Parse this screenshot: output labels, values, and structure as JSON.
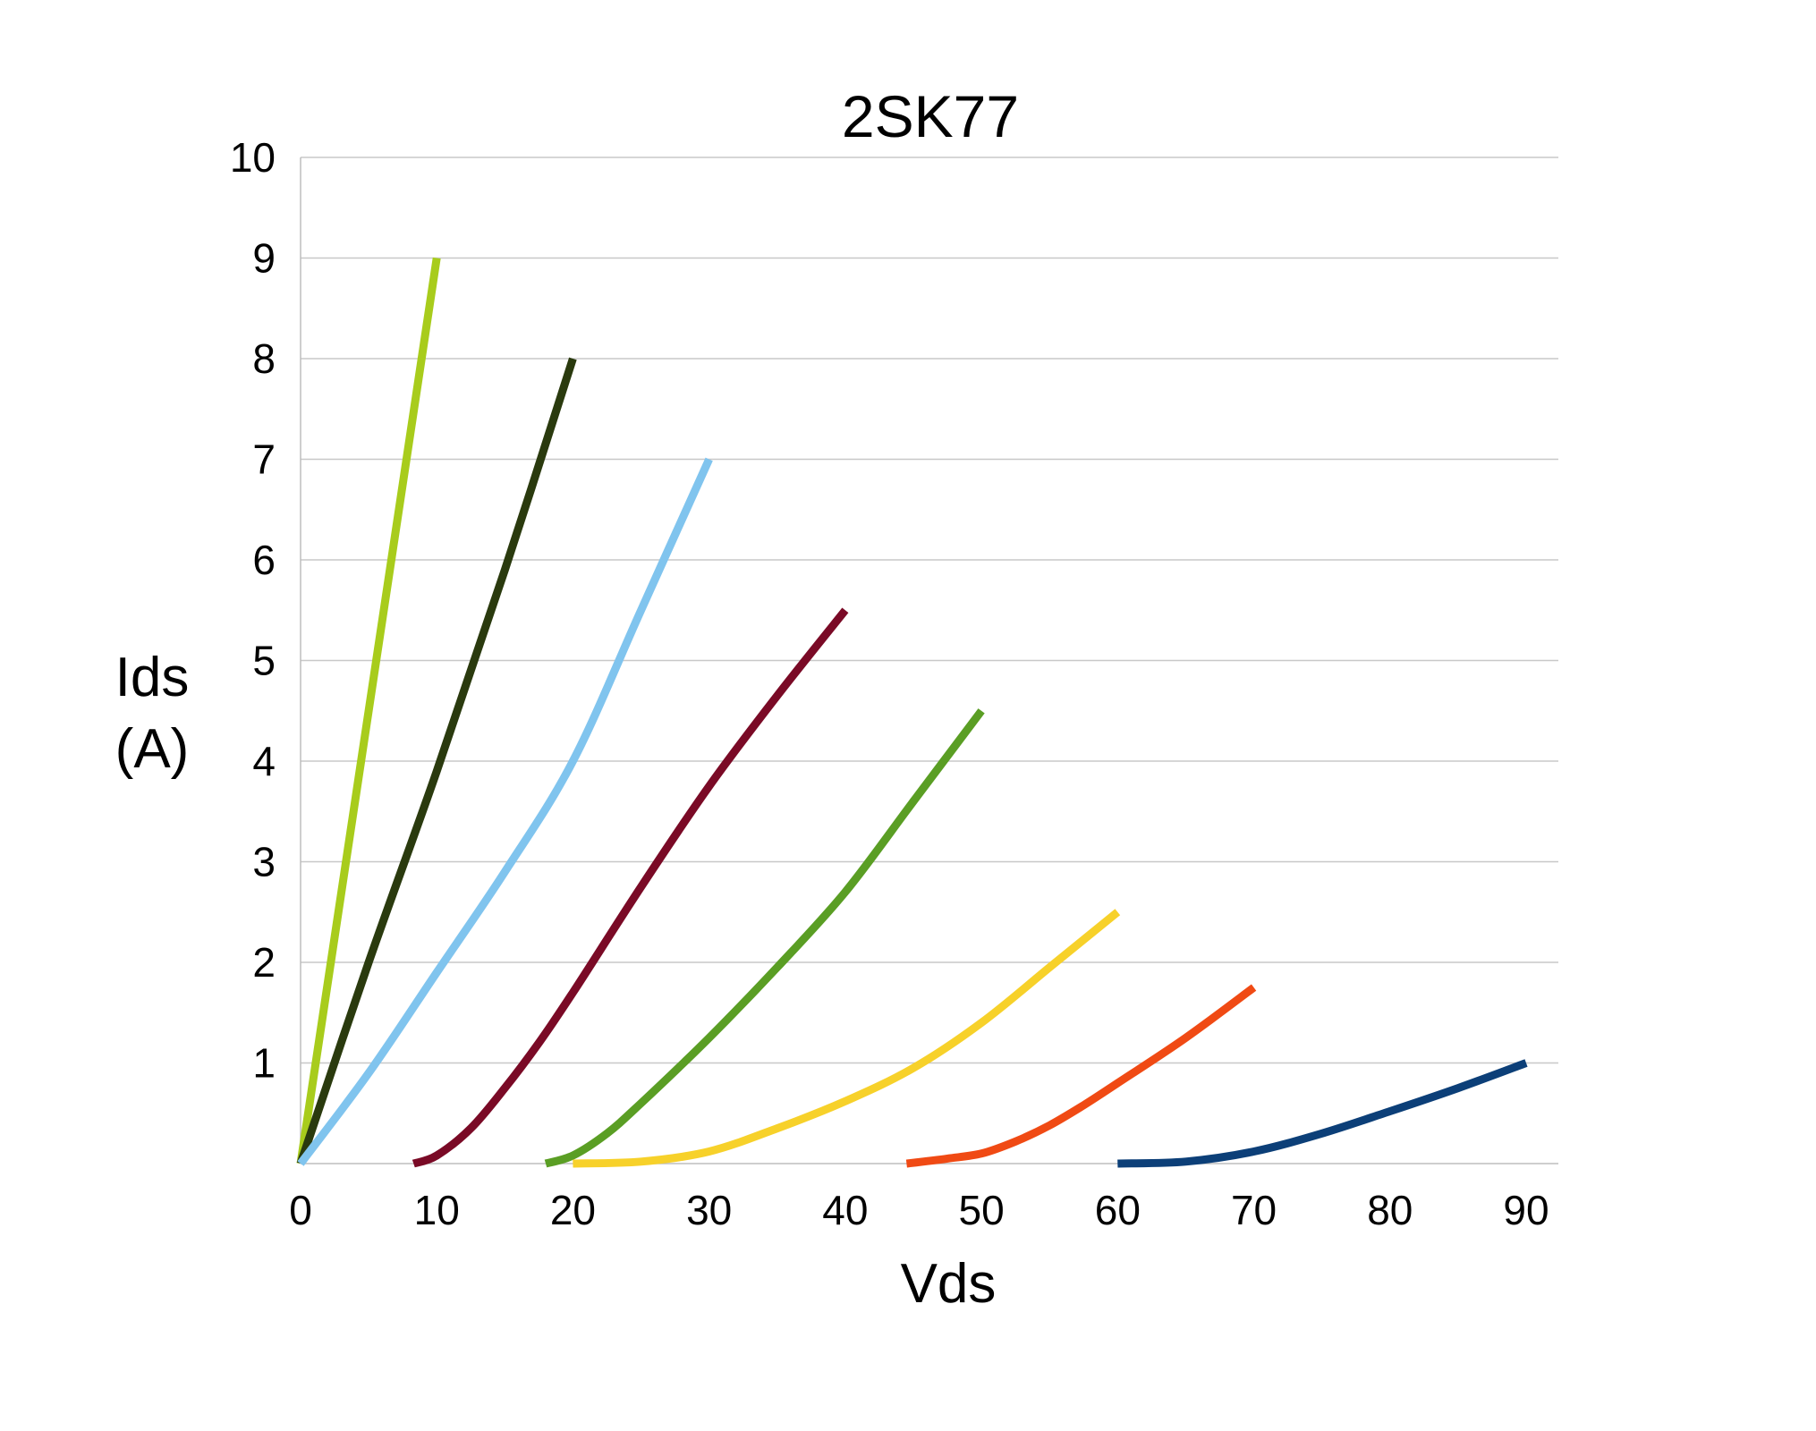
{
  "chart_data": {
    "type": "line",
    "title": "2SK77",
    "xlabel": "Vds",
    "ylabel_lines": [
      "Ids",
      "(A)"
    ],
    "xlim": [
      0,
      92
    ],
    "ylim": [
      0,
      10
    ],
    "x_ticks": [
      0,
      10,
      20,
      30,
      40,
      50,
      60,
      70,
      80,
      90
    ],
    "y_ticks": [
      1,
      2,
      3,
      4,
      5,
      6,
      7,
      8,
      9,
      10
    ],
    "grid": "horizontal",
    "legend": "none",
    "series": [
      {
        "color": "#a8cc1c",
        "points": [
          [
            0,
            0
          ],
          [
            10,
            9
          ]
        ]
      },
      {
        "color": "#2a3a0e",
        "points": [
          [
            0,
            0
          ],
          [
            5,
            2
          ],
          [
            10,
            3.9
          ],
          [
            15,
            5.9
          ],
          [
            20,
            8
          ]
        ]
      },
      {
        "color": "#80c4ee",
        "points": [
          [
            0,
            0
          ],
          [
            5,
            0.9
          ],
          [
            10,
            1.9
          ],
          [
            15,
            2.9
          ],
          [
            20,
            4
          ],
          [
            25,
            5.5
          ],
          [
            30,
            7
          ]
        ]
      },
      {
        "color": "#7a0a26",
        "points": [
          [
            8.3,
            0
          ],
          [
            10,
            0.08
          ],
          [
            12.5,
            0.35
          ],
          [
            15,
            0.75
          ],
          [
            17.5,
            1.2
          ],
          [
            20,
            1.7
          ],
          [
            25,
            2.75
          ],
          [
            30,
            3.75
          ],
          [
            35,
            4.65
          ],
          [
            40,
            5.5
          ]
        ]
      },
      {
        "color": "#5a9e24",
        "points": [
          [
            18,
            0
          ],
          [
            20,
            0.08
          ],
          [
            22.5,
            0.3
          ],
          [
            25,
            0.6
          ],
          [
            30,
            1.25
          ],
          [
            35,
            1.95
          ],
          [
            40,
            2.7
          ],
          [
            45,
            3.6
          ],
          [
            50,
            4.5
          ]
        ]
      },
      {
        "color": "#f7d12a",
        "points": [
          [
            20,
            0
          ],
          [
            25,
            0.02
          ],
          [
            30,
            0.12
          ],
          [
            35,
            0.35
          ],
          [
            40,
            0.62
          ],
          [
            45,
            0.95
          ],
          [
            50,
            1.4
          ],
          [
            55,
            1.95
          ],
          [
            60,
            2.5
          ]
        ]
      },
      {
        "color": "#f04a14",
        "points": [
          [
            44.5,
            0
          ],
          [
            47.5,
            0.05
          ],
          [
            50,
            0.1
          ],
          [
            52.5,
            0.22
          ],
          [
            55,
            0.38
          ],
          [
            57.5,
            0.58
          ],
          [
            60,
            0.8
          ],
          [
            65,
            1.25
          ],
          [
            70,
            1.75
          ]
        ]
      },
      {
        "color": "#0c3f78",
        "points": [
          [
            60,
            0
          ],
          [
            65,
            0.02
          ],
          [
            70,
            0.12
          ],
          [
            75,
            0.3
          ],
          [
            80,
            0.52
          ],
          [
            85,
            0.75
          ],
          [
            90,
            1
          ]
        ]
      }
    ]
  }
}
